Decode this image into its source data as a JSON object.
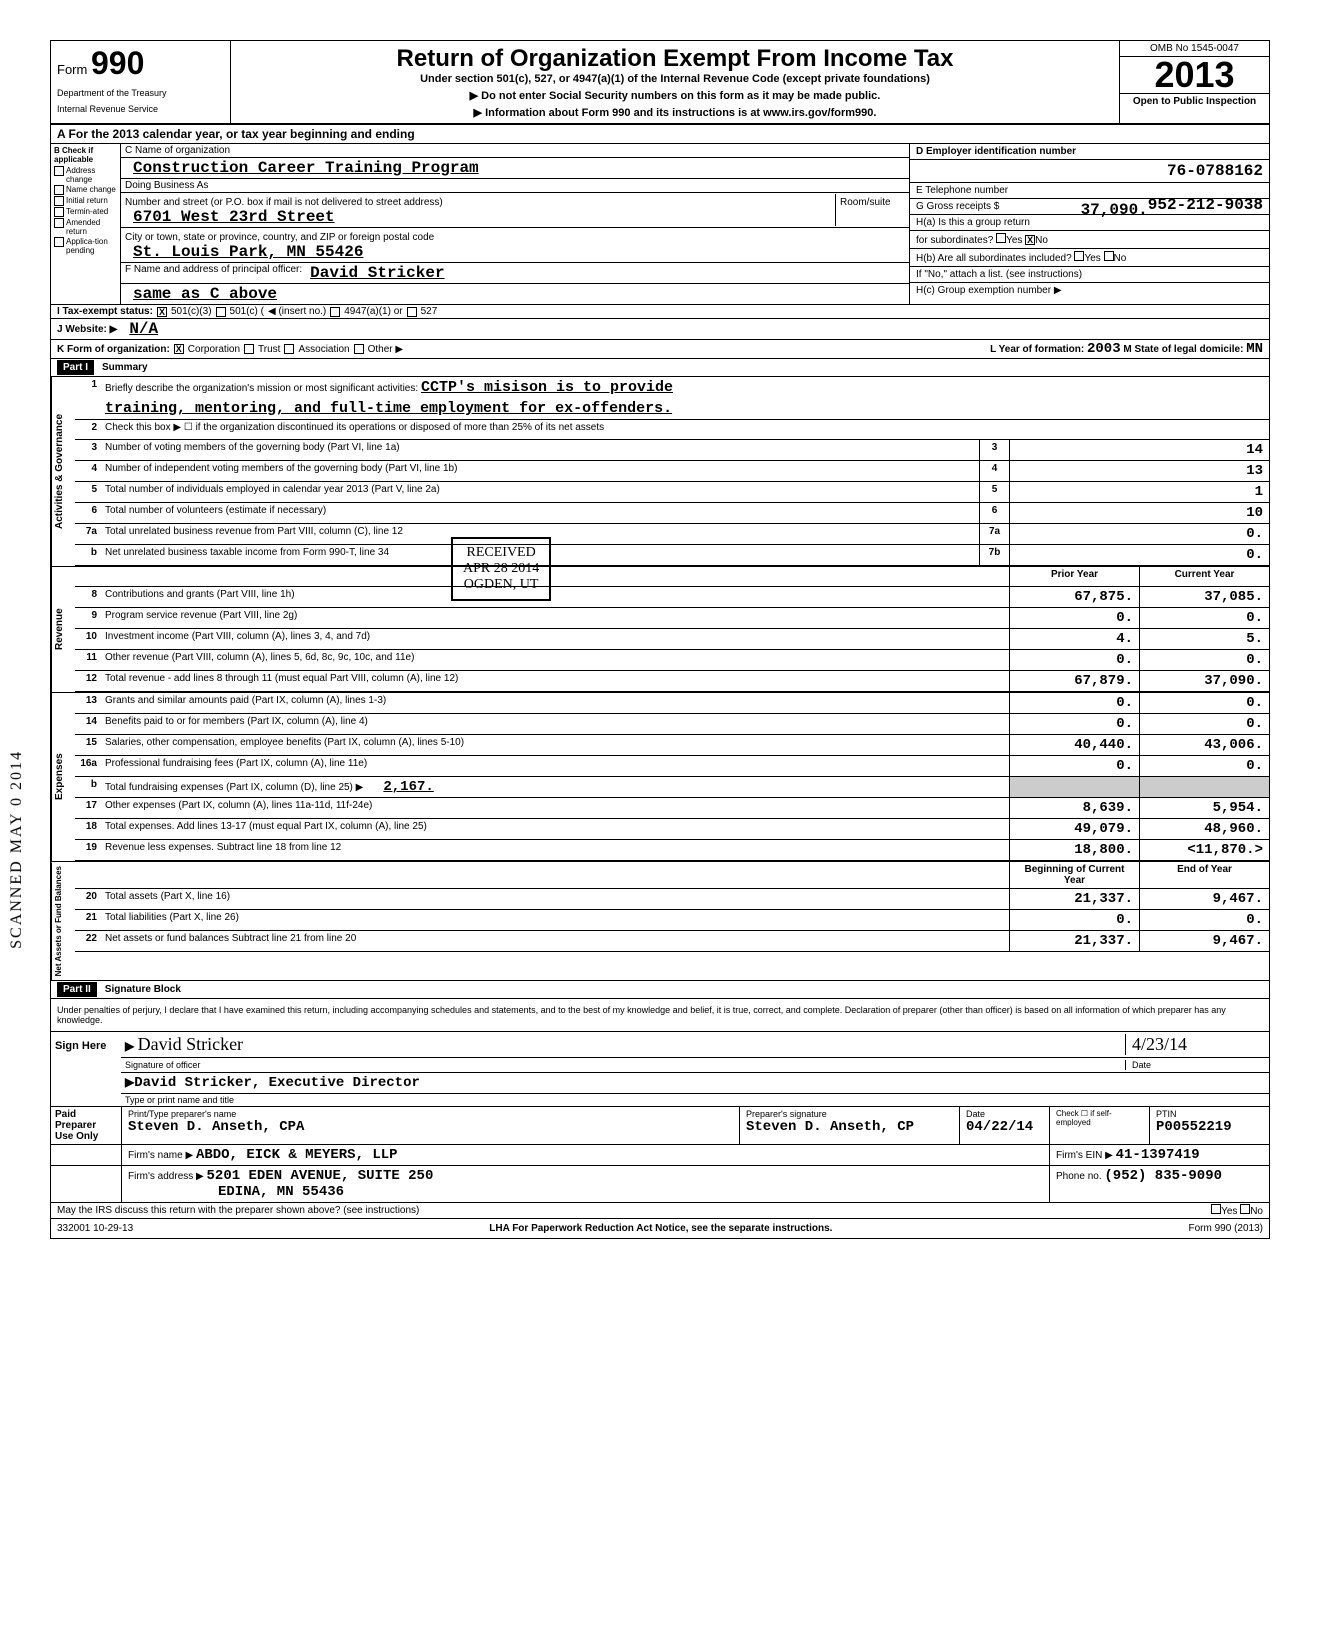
{
  "header": {
    "form_label": "Form",
    "form_number": "990",
    "dept": "Department of the Treasury",
    "irs": "Internal Revenue Service",
    "title": "Return of Organization Exempt From Income Tax",
    "subtitle": "Under section 501(c), 527, or 4947(a)(1) of the Internal Revenue Code (except private foundations)",
    "directive1": "▶ Do not enter Social Security numbers on this form as it may be made public.",
    "directive2": "▶ Information about Form 990 and its instructions is at www.irs.gov/form990.",
    "omb": "OMB No 1545-0047",
    "year": "2013",
    "open": "Open to Public Inspection"
  },
  "line_a": "A For the 2013 calendar year, or tax year beginning                                        and ending",
  "col_b": {
    "header": "B Check if applicable",
    "options": [
      "Address change",
      "Name change",
      "Initial return",
      "Termin-ated",
      "Amended return",
      "Applica-tion pending"
    ]
  },
  "col_c": {
    "name_label": "C Name of organization",
    "name": "Construction Career Training Program",
    "dba_label": "Doing Business As",
    "addr_label": "Number and street (or P.O. box if mail is not delivered to street address)",
    "room_label": "Room/suite",
    "addr": "6701 West 23rd Street",
    "city_label": "City or town, state or province, country, and ZIP or foreign postal code",
    "city": "St. Louis Park, MN  55426",
    "officer_label": "F Name and address of principal officer:",
    "officer": "David Stricker",
    "officer_addr": "same as C above"
  },
  "col_d": {
    "ein_label": "D Employer identification number",
    "ein": "76-0788162",
    "phone_label": "E Telephone number",
    "phone": "952-212-9038",
    "gross_label": "G Gross receipts $",
    "gross": "37,090.",
    "ha_label": "H(a) Is this a group return",
    "ha_label2": "for subordinates?",
    "hb_label": "H(b) Are all subordinates included?",
    "h_note": "If \"No,\" attach a list. (see instructions)",
    "hc_label": "H(c) Group exemption number ▶"
  },
  "line_i": {
    "label": "I Tax-exempt status:",
    "opt1": "501(c)(3)",
    "opt2": "501(c) (",
    "insert": "◀ (insert no.)",
    "opt3": "4947(a)(1) or",
    "opt4": "527"
  },
  "line_j": {
    "label": "J Website: ▶",
    "value": "N/A"
  },
  "line_k": {
    "label": "K Form of organization:",
    "opts": [
      "Corporation",
      "Trust",
      "Association",
      "Other ▶"
    ],
    "l_label": "L Year of formation:",
    "l_val": "2003",
    "m_label": "M State of legal domicile:",
    "m_val": "MN"
  },
  "part1": {
    "header": "Part I",
    "title": "Summary",
    "tab_gov": "Activities & Governance",
    "tab_rev": "Revenue",
    "tab_exp": "Expenses",
    "tab_net": "Net Assets or Fund Balances",
    "l1_label": "Briefly describe the organization's mission or most significant activities:",
    "l1_text1": "CCTP's misison is to provide",
    "l1_text2": "training, mentoring, and full-time employment for ex-offenders.",
    "l2": "Check this box ▶ ☐ if the organization discontinued its operations or disposed of more than 25% of its net assets",
    "rows": [
      {
        "n": "3",
        "label": "Number of voting members of the governing body (Part VI, line 1a)",
        "box": "3",
        "val": "14"
      },
      {
        "n": "4",
        "label": "Number of independent voting members of the governing body (Part VI, line 1b)",
        "box": "4",
        "val": "13"
      },
      {
        "n": "5",
        "label": "Total number of individuals employed in calendar year 2013 (Part V, line 2a)",
        "box": "5",
        "val": "1"
      },
      {
        "n": "6",
        "label": "Total number of volunteers (estimate if necessary)",
        "box": "6",
        "val": "10"
      },
      {
        "n": "7a",
        "label": "Total unrelated business revenue from Part VIII, column (C), line 12",
        "box": "7a",
        "val": "0."
      },
      {
        "n": "b",
        "label": "Net unrelated business taxable income from Form 990-T, line 34",
        "box": "7b",
        "val": "0."
      }
    ],
    "col_prior": "Prior Year",
    "col_current": "Current Year",
    "rev_rows": [
      {
        "n": "8",
        "label": "Contributions and grants (Part VIII, line 1h)",
        "p": "67,875.",
        "c": "37,085."
      },
      {
        "n": "9",
        "label": "Program service revenue (Part VIII, line 2g)",
        "p": "0.",
        "c": "0."
      },
      {
        "n": "10",
        "label": "Investment income (Part VIII, column (A), lines 3, 4, and 7d)",
        "p": "4.",
        "c": "5."
      },
      {
        "n": "11",
        "label": "Other revenue (Part VIII, column (A), lines 5, 6d, 8c, 9c, 10c, and 11e)",
        "p": "0.",
        "c": "0."
      },
      {
        "n": "12",
        "label": "Total revenue - add lines 8 through 11 (must equal Part VIII, column (A), line 12)",
        "p": "67,879.",
        "c": "37,090."
      }
    ],
    "exp_rows": [
      {
        "n": "13",
        "label": "Grants and similar amounts paid (Part IX, column (A), lines 1-3)",
        "p": "0.",
        "c": "0."
      },
      {
        "n": "14",
        "label": "Benefits paid to or for members (Part IX, column (A), line 4)",
        "p": "0.",
        "c": "0."
      },
      {
        "n": "15",
        "label": "Salaries, other compensation, employee benefits (Part IX, column (A), lines 5-10)",
        "p": "40,440.",
        "c": "43,006."
      },
      {
        "n": "16a",
        "label": "Professional fundraising fees (Part IX, column (A), line 11e)",
        "p": "0.",
        "c": "0."
      },
      {
        "n": "b",
        "label": "Total fundraising expenses (Part IX, column (D), line 25) ▶",
        "inline": "2,167.",
        "p": "",
        "c": "",
        "shade": true
      },
      {
        "n": "17",
        "label": "Other expenses (Part IX, column (A), lines 11a-11d, 11f-24e)",
        "p": "8,639.",
        "c": "5,954."
      },
      {
        "n": "18",
        "label": "Total expenses. Add lines 13-17 (must equal Part IX, column (A), line 25)",
        "p": "49,079.",
        "c": "48,960."
      },
      {
        "n": "19",
        "label": "Revenue less expenses. Subtract line 18 from line 12",
        "p": "18,800.",
        "c": "<11,870.>"
      }
    ],
    "col_begin": "Beginning of Current Year",
    "col_end": "End of Year",
    "net_rows": [
      {
        "n": "20",
        "label": "Total assets (Part X, line 16)",
        "p": "21,337.",
        "c": "9,467."
      },
      {
        "n": "21",
        "label": "Total liabilities (Part X, line 26)",
        "p": "0.",
        "c": "0."
      },
      {
        "n": "22",
        "label": "Net assets or fund balances Subtract line 21 from line 20",
        "p": "21,337.",
        "c": "9,467."
      }
    ]
  },
  "stamp": {
    "received": "RECEIVED",
    "date": "APR 28 2014",
    "place": "OGDEN, UT"
  },
  "part2": {
    "header": "Part II",
    "title": "Signature Block",
    "declaration": "Under penalties of perjury, I declare that I have examined this return, including accompanying schedules and statements, and to the best of my knowledge and belief, it is true, correct, and complete. Declaration of preparer (other than officer) is based on all information of which preparer has any knowledge.",
    "sign_here": "Sign Here",
    "sig_label": "Signature of officer",
    "sig_date_label": "Date",
    "sig_date": "4/23/14",
    "officer_name": "David Stricker, Executive Director",
    "officer_type_label": "Type or print name and title",
    "paid": "Paid Preparer Use Only",
    "prep_name_label": "Print/Type preparer's name",
    "prep_name": "Steven D. Anseth, CPA",
    "prep_sig_label": "Preparer's signature",
    "prep_sig": "Steven D. Anseth, CP",
    "prep_date_label": "Date",
    "prep_date": "04/22/14",
    "self_emp": "Check ☐ if self-employed",
    "ptin_label": "PTIN",
    "ptin": "P00552219",
    "firm_name_label": "Firm's name ▶",
    "firm_name": "ABDO, EICK & MEYERS, LLP",
    "firm_ein_label": "Firm's EIN ▶",
    "firm_ein": "41-1397419",
    "firm_addr_label": "Firm's address ▶",
    "firm_addr1": "5201 EDEN AVENUE, SUITE 250",
    "firm_addr2": "EDINA, MN 55436",
    "phone_label": "Phone no.",
    "phone": "(952) 835-9090",
    "discuss": "May the IRS discuss this return with the preparer shown above? (see instructions)",
    "yes": "Yes",
    "no": "No"
  },
  "footer": {
    "code": "332001 10-29-13",
    "lha": "LHA For Paperwork Reduction Act Notice, see the separate instructions.",
    "form": "Form 990 (2013)"
  },
  "side_stamp": "SCANNED MAY 0 2014"
}
